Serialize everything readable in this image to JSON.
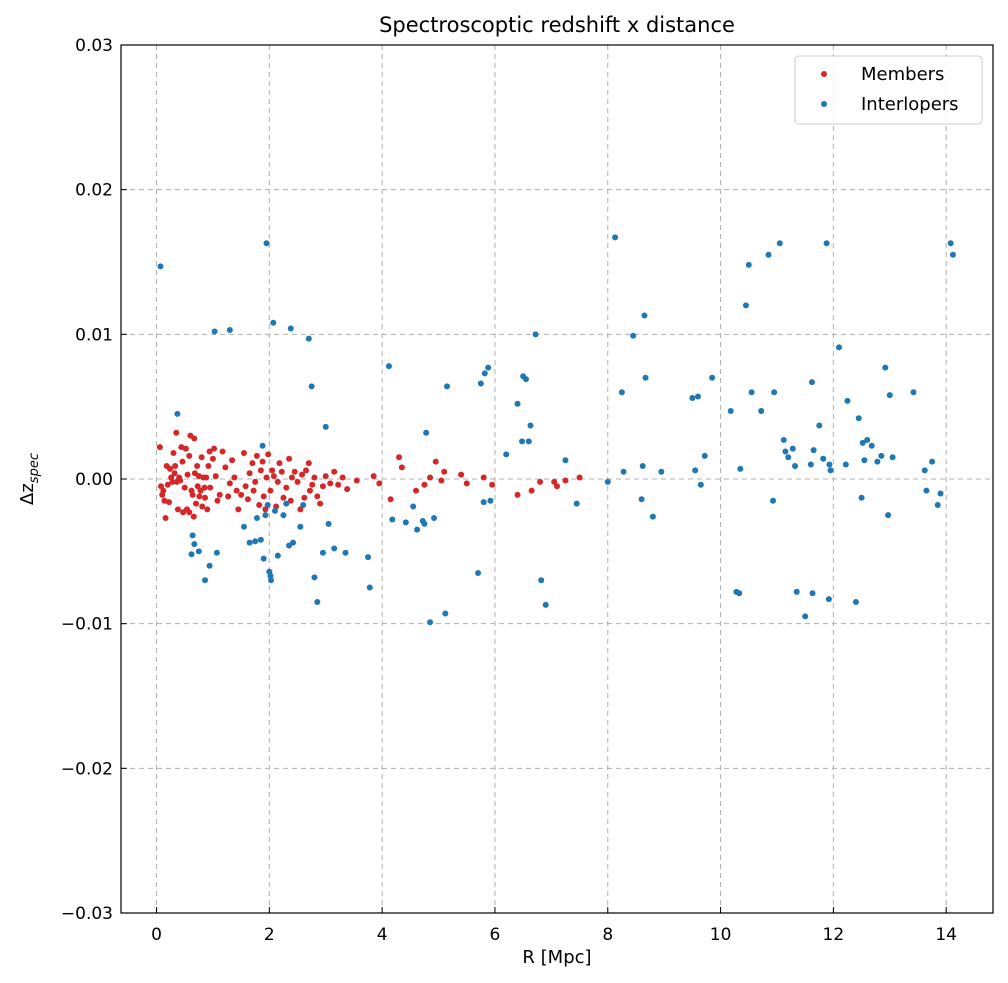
{
  "chart_data": {
    "type": "scatter",
    "title": "Spectroscoptic redshift x distance",
    "xlabel": "R [Mpc]",
    "ylabel": "Δz",
    "ylabel_subscript": "spec",
    "xlim": [
      -0.63,
      14.83
    ],
    "ylim": [
      -0.03,
      0.03
    ],
    "xticks": [
      0,
      2,
      4,
      6,
      8,
      10,
      12,
      14
    ],
    "xtick_labels": [
      "0",
      "2",
      "4",
      "6",
      "8",
      "10",
      "12",
      "14"
    ],
    "yticks": [
      -0.03,
      -0.02,
      -0.01,
      0.0,
      0.01,
      0.02,
      0.03
    ],
    "ytick_labels": [
      "−0.03",
      "−0.02",
      "−0.01",
      "0.00",
      "0.01",
      "0.02",
      "0.03"
    ],
    "grid": true,
    "legend_position": "upper right",
    "series": [
      {
        "name": "Members",
        "color": "#d62728",
        "points": [
          [
            0.06,
            0.0022
          ],
          [
            0.08,
            -0.0005
          ],
          [
            0.1,
            -0.0011
          ],
          [
            0.12,
            -0.0008
          ],
          [
            0.14,
            -0.0015
          ],
          [
            0.16,
            -0.0027
          ],
          [
            0.18,
            0.0009
          ],
          [
            0.2,
            -0.0004
          ],
          [
            0.22,
            -0.0016
          ],
          [
            0.24,
            0.0007
          ],
          [
            0.26,
            0.0001
          ],
          [
            0.28,
            -0.0002
          ],
          [
            0.3,
            0.0018
          ],
          [
            0.32,
            0.0004
          ],
          [
            0.33,
            0.0009
          ],
          [
            0.35,
            0.0032
          ],
          [
            0.36,
            -0.0002
          ],
          [
            0.38,
            -0.0021
          ],
          [
            0.4,
            0.0001
          ],
          [
            0.42,
            -0.0001
          ],
          [
            0.44,
            0.0022
          ],
          [
            0.46,
            0.0012
          ],
          [
            0.47,
            -0.0023
          ],
          [
            0.5,
            -0.0006
          ],
          [
            0.52,
            0.0021
          ],
          [
            0.54,
            -0.0021
          ],
          [
            0.55,
            0.0003
          ],
          [
            0.58,
            0.0016
          ],
          [
            0.58,
            -0.0023
          ],
          [
            0.6,
            0.003
          ],
          [
            0.62,
            -0.0008
          ],
          [
            0.64,
            -0.0011
          ],
          [
            0.66,
            -0.0026
          ],
          [
            0.67,
            0.0028
          ],
          [
            0.68,
            0.0004
          ],
          [
            0.7,
            -0.0017
          ],
          [
            0.72,
            0.0009
          ],
          [
            0.73,
            -0.0005
          ],
          [
            0.75,
            0.0002
          ],
          [
            0.76,
            -0.0012
          ],
          [
            0.78,
            -0.0008
          ],
          [
            0.8,
            0.0015
          ],
          [
            0.81,
            -0.0019
          ],
          [
            0.83,
            0.0001
          ],
          [
            0.85,
            -0.0006
          ],
          [
            0.86,
            -0.0013
          ],
          [
            0.88,
            0.0001
          ],
          [
            0.9,
            -0.0021
          ],
          [
            0.92,
            0.0009
          ],
          [
            0.94,
            0.0019
          ],
          [
            0.95,
            -0.0006
          ],
          [
            1.0,
            0.0014
          ],
          [
            1.02,
            0.0021
          ],
          [
            1.05,
            0.0002
          ],
          [
            1.08,
            -0.0015
          ],
          [
            1.12,
            -0.0011
          ],
          [
            1.17,
            0.0019
          ],
          [
            1.22,
            0.0008
          ],
          [
            1.27,
            -0.0012
          ],
          [
            1.3,
            -0.0003
          ],
          [
            1.34,
            0.0013
          ],
          [
            1.38,
            0.0001
          ],
          [
            1.42,
            -0.0008
          ],
          [
            1.45,
            -0.0021
          ],
          [
            1.5,
            -0.0011
          ],
          [
            1.55,
            0.0018
          ],
          [
            1.58,
            -0.0005
          ],
          [
            1.62,
            -0.0014
          ],
          [
            1.65,
            0.0004
          ],
          [
            1.7,
            0.0011
          ],
          [
            1.72,
            -0.0008
          ],
          [
            1.75,
            -0.0002
          ],
          [
            1.78,
            0.0016
          ],
          [
            1.82,
            -0.0018
          ],
          [
            1.85,
            0.0006
          ],
          [
            1.88,
            0.0012
          ],
          [
            1.9,
            -0.0012
          ],
          [
            1.93,
            -0.0021
          ],
          [
            1.95,
            0.0001
          ],
          [
            1.98,
            0.0017
          ],
          [
            2.02,
            -0.0008
          ],
          [
            2.05,
            0.0006
          ],
          [
            2.08,
            0.0002
          ],
          [
            2.12,
            -0.0019
          ],
          [
            2.15,
            -0.0002
          ],
          [
            2.18,
            0.0011
          ],
          [
            2.22,
            0.0005
          ],
          [
            2.25,
            -0.0013
          ],
          [
            2.3,
            -0.0006
          ],
          [
            2.35,
            0.0014
          ],
          [
            2.38,
            -0.0015
          ],
          [
            2.4,
            0.0001
          ],
          [
            2.45,
            0.0005
          ],
          [
            2.5,
            -0.0002
          ],
          [
            2.55,
            -0.0021
          ],
          [
            2.58,
            0.0003
          ],
          [
            2.62,
            -0.0013
          ],
          [
            2.65,
            0.0006
          ],
          [
            2.7,
            0.0011
          ],
          [
            2.72,
            -0.0008
          ],
          [
            2.76,
            -0.0004
          ],
          [
            2.8,
            0.0001
          ],
          [
            2.85,
            -0.0012
          ],
          [
            2.9,
            -0.0017
          ],
          [
            2.95,
            -0.0005
          ],
          [
            3.0,
            0.0002
          ],
          [
            3.08,
            -0.0003
          ],
          [
            3.15,
            0.0005
          ],
          [
            3.22,
            -0.0004
          ],
          [
            3.3,
            0.0001
          ],
          [
            3.38,
            -0.0007
          ],
          [
            3.55,
            -0.0001
          ],
          [
            3.85,
            0.0002
          ],
          [
            3.95,
            -0.0003
          ],
          [
            4.15,
            -0.0014
          ],
          [
            4.3,
            0.0015
          ],
          [
            4.35,
            0.0008
          ],
          [
            4.6,
            -0.0008
          ],
          [
            4.75,
            -0.0004
          ],
          [
            4.85,
            0.0001
          ],
          [
            4.95,
            0.0012
          ],
          [
            5.05,
            -0.0001
          ],
          [
            5.1,
            0.0005
          ],
          [
            5.4,
            0.0003
          ],
          [
            5.5,
            -0.0003
          ],
          [
            5.8,
            0.0001
          ],
          [
            5.95,
            -0.0004
          ],
          [
            6.4,
            -0.0011
          ],
          [
            6.65,
            -0.0008
          ],
          [
            6.8,
            -0.0002
          ],
          [
            7.05,
            -0.0002
          ],
          [
            7.1,
            -0.0005
          ],
          [
            7.25,
            -0.0001
          ],
          [
            7.5,
            0.0001
          ]
        ]
      },
      {
        "name": "Interlopers",
        "color": "#1f77b4",
        "points": [
          [
            0.07,
            0.0147
          ],
          [
            0.37,
            0.0045
          ],
          [
            0.62,
            -0.0052
          ],
          [
            0.64,
            -0.0039
          ],
          [
            0.67,
            -0.0045
          ],
          [
            0.75,
            -0.005
          ],
          [
            0.86,
            -0.007
          ],
          [
            0.94,
            -0.006
          ],
          [
            1.03,
            0.0102
          ],
          [
            1.07,
            -0.0051
          ],
          [
            1.3,
            0.0103
          ],
          [
            1.55,
            -0.0033
          ],
          [
            1.65,
            -0.0044
          ],
          [
            1.75,
            -0.0043
          ],
          [
            1.78,
            -0.0027
          ],
          [
            1.85,
            -0.0042
          ],
          [
            1.88,
            0.0023
          ],
          [
            1.9,
            -0.0055
          ],
          [
            1.93,
            -0.0025
          ],
          [
            1.95,
            0.0163
          ],
          [
            1.97,
            -0.0018
          ],
          [
            2.0,
            -0.0064
          ],
          [
            2.02,
            -0.0067
          ],
          [
            2.03,
            -0.007
          ],
          [
            2.07,
            0.0108
          ],
          [
            2.1,
            -0.0022
          ],
          [
            2.15,
            -0.0053
          ],
          [
            2.25,
            -0.0025
          ],
          [
            2.3,
            -0.0017
          ],
          [
            2.35,
            -0.0046
          ],
          [
            2.38,
            0.0104
          ],
          [
            2.42,
            -0.0044
          ],
          [
            2.55,
            -0.0033
          ],
          [
            2.6,
            -0.0018
          ],
          [
            2.7,
            0.0097
          ],
          [
            2.75,
            0.0064
          ],
          [
            2.8,
            -0.0068
          ],
          [
            2.85,
            -0.0085
          ],
          [
            2.95,
            -0.0051
          ],
          [
            3.0,
            0.0036
          ],
          [
            3.05,
            -0.0031
          ],
          [
            3.15,
            -0.0048
          ],
          [
            3.35,
            -0.0051
          ],
          [
            3.75,
            -0.0054
          ],
          [
            3.78,
            -0.0075
          ],
          [
            4.12,
            0.0078
          ],
          [
            4.18,
            -0.0028
          ],
          [
            4.42,
            -0.003
          ],
          [
            4.55,
            -0.0019
          ],
          [
            4.62,
            -0.0035
          ],
          [
            4.72,
            -0.0029
          ],
          [
            4.75,
            -0.0031
          ],
          [
            4.78,
            0.0032
          ],
          [
            4.85,
            -0.0099
          ],
          [
            4.92,
            -0.0027
          ],
          [
            5.12,
            -0.0093
          ],
          [
            5.15,
            0.0064
          ],
          [
            5.7,
            -0.0065
          ],
          [
            5.75,
            0.0066
          ],
          [
            5.8,
            -0.0016
          ],
          [
            5.82,
            0.0073
          ],
          [
            5.88,
            0.0077
          ],
          [
            5.92,
            -0.0015
          ],
          [
            6.2,
            0.0017
          ],
          [
            6.4,
            0.0052
          ],
          [
            6.48,
            0.0026
          ],
          [
            6.5,
            0.0071
          ],
          [
            6.55,
            0.0069
          ],
          [
            6.6,
            0.0026
          ],
          [
            6.63,
            0.0037
          ],
          [
            6.72,
            0.01
          ],
          [
            6.82,
            -0.007
          ],
          [
            6.9,
            -0.0087
          ],
          [
            7.25,
            0.0013
          ],
          [
            7.45,
            -0.0017
          ],
          [
            8.0,
            -0.0002
          ],
          [
            8.13,
            0.0167
          ],
          [
            8.25,
            0.006
          ],
          [
            8.28,
            0.0005
          ],
          [
            8.45,
            0.0099
          ],
          [
            8.6,
            -0.0014
          ],
          [
            8.62,
            0.0009
          ],
          [
            8.65,
            0.0113
          ],
          [
            8.67,
            0.007
          ],
          [
            8.8,
            -0.0026
          ],
          [
            8.95,
            0.0005
          ],
          [
            9.5,
            0.0056
          ],
          [
            9.55,
            0.0006
          ],
          [
            9.6,
            0.0057
          ],
          [
            9.65,
            -0.0004
          ],
          [
            9.72,
            0.0016
          ],
          [
            9.85,
            0.007
          ],
          [
            10.18,
            0.0047
          ],
          [
            10.28,
            -0.0078
          ],
          [
            10.33,
            -0.0079
          ],
          [
            10.35,
            0.0007
          ],
          [
            10.45,
            0.012
          ],
          [
            10.5,
            0.0148
          ],
          [
            10.55,
            0.006
          ],
          [
            10.72,
            0.0047
          ],
          [
            10.85,
            0.0155
          ],
          [
            10.93,
            -0.0015
          ],
          [
            10.95,
            0.006
          ],
          [
            11.05,
            0.0163
          ],
          [
            11.12,
            0.0027
          ],
          [
            11.15,
            0.0019
          ],
          [
            11.2,
            0.0015
          ],
          [
            11.28,
            0.0021
          ],
          [
            11.32,
            0.0009
          ],
          [
            11.35,
            -0.0078
          ],
          [
            11.5,
            -0.0095
          ],
          [
            11.6,
            0.001
          ],
          [
            11.62,
            0.0067
          ],
          [
            11.63,
            -0.0079
          ],
          [
            11.65,
            0.002
          ],
          [
            11.75,
            0.0037
          ],
          [
            11.82,
            0.0014
          ],
          [
            11.88,
            0.0163
          ],
          [
            11.92,
            -0.0083
          ],
          [
            11.93,
            0.001
          ],
          [
            11.95,
            0.0006
          ],
          [
            12.1,
            0.0091
          ],
          [
            12.22,
            0.001
          ],
          [
            12.25,
            0.0054
          ],
          [
            12.4,
            -0.0085
          ],
          [
            12.45,
            0.0042
          ],
          [
            12.5,
            -0.0013
          ],
          [
            12.52,
            0.0025
          ],
          [
            12.55,
            0.0013
          ],
          [
            12.6,
            0.0027
          ],
          [
            12.68,
            0.0023
          ],
          [
            12.78,
            0.0012
          ],
          [
            12.85,
            0.0016
          ],
          [
            12.92,
            0.0077
          ],
          [
            12.97,
            -0.0025
          ],
          [
            13.0,
            0.0058
          ],
          [
            13.05,
            0.0015
          ],
          [
            13.42,
            0.006
          ],
          [
            13.62,
            0.0006
          ],
          [
            13.65,
            -0.0008
          ],
          [
            13.75,
            0.0012
          ],
          [
            13.85,
            -0.0018
          ],
          [
            13.9,
            -0.001
          ],
          [
            14.08,
            0.0163
          ],
          [
            14.12,
            0.0155
          ]
        ]
      }
    ]
  }
}
